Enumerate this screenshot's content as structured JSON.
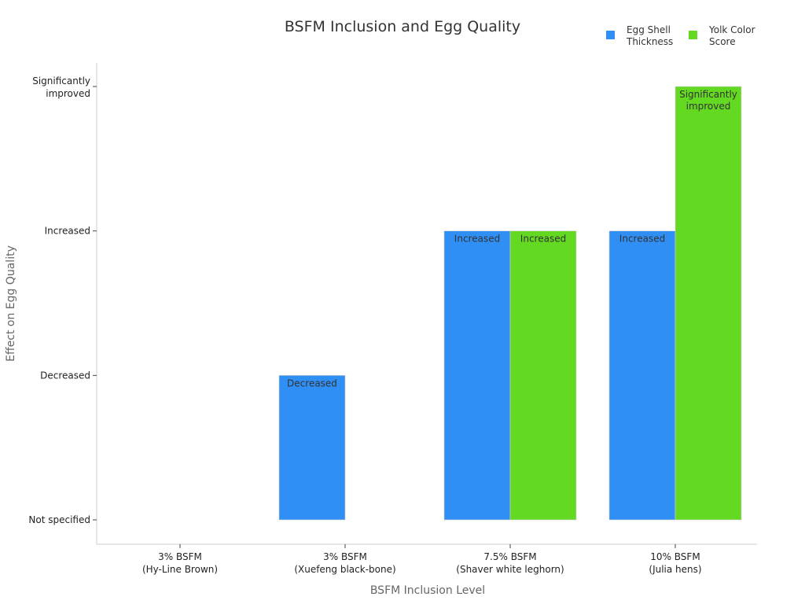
{
  "chart_data": {
    "type": "bar",
    "title": "BSFM Inclusion and Egg Quality",
    "xlabel": "BSFM Inclusion Level",
    "ylabel": "Effect on Egg Quality",
    "categories": [
      [
        "3% BSFM",
        "(Hy-Line Brown)"
      ],
      [
        "3% BSFM",
        "(Xuefeng black-bone)"
      ],
      [
        "7.5% BSFM",
        "(Shaver white leghorn)"
      ],
      [
        "10% BSFM",
        "(Julia hens)"
      ]
    ],
    "y_levels": [
      "Not specified",
      "Decreased",
      "Increased",
      [
        "Significantly",
        "improved"
      ]
    ],
    "ylim": [
      0,
      3
    ],
    "grid": false,
    "legend_position": "top-right",
    "series": [
      {
        "name": [
          "Egg Shell",
          "Thickness"
        ],
        "color": "#2f8ff5",
        "values": [
          0,
          1,
          2,
          2
        ],
        "labels": [
          [],
          [
            "Decreased"
          ],
          [
            "Increased"
          ],
          [
            "Increased"
          ]
        ]
      },
      {
        "name": [
          "Yolk Color",
          "Score"
        ],
        "color": "#64d922",
        "values": [
          0,
          0,
          2,
          3
        ],
        "labels": [
          [],
          [],
          [
            "Increased"
          ],
          [
            "Significantly",
            "improved"
          ]
        ]
      }
    ]
  }
}
